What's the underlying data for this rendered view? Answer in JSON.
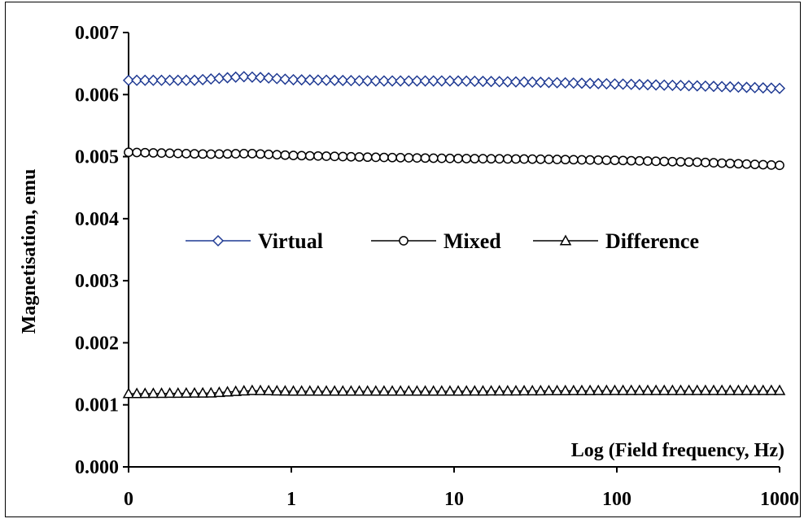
{
  "chart_data": {
    "type": "line",
    "title": "",
    "xlabel": "Log (Field frequency, Hz)",
    "ylabel": "Magnetisation, emu",
    "x_scale": "log-like (decade spacing)",
    "x_tick_labels": [
      "0",
      "1",
      "10",
      "100",
      "1000"
    ],
    "y_tick_labels": [
      "0.000",
      "0.001",
      "0.002",
      "0.003",
      "0.004",
      "0.005",
      "0.006",
      "0.007"
    ],
    "ylim": [
      0,
      0.007
    ],
    "y_ticks": [
      0,
      0.001,
      0.002,
      0.003,
      0.004,
      0.005,
      0.006,
      0.007
    ],
    "grid": false,
    "legend_position": "center",
    "points_per_series": 80,
    "series": [
      {
        "name": "Virtual",
        "marker": "diamond",
        "color": "#1f3a93",
        "marker_fill": "#ffffff",
        "anchors_decade_position": [
          0,
          0.4,
          0.55,
          0.7,
          0.85,
          1,
          1.5,
          2,
          2.5,
          3,
          3.5,
          4
        ],
        "anchors_values": [
          0.00623,
          0.00623,
          0.00626,
          0.00629,
          0.00627,
          0.00624,
          0.00622,
          0.00622,
          0.0062,
          0.00617,
          0.00614,
          0.0061
        ]
      },
      {
        "name": "Mixed",
        "marker": "circle",
        "color": "#000000",
        "marker_fill": "#ffffff",
        "anchors_decade_position": [
          0,
          0.5,
          0.75,
          1,
          1.5,
          2,
          2.5,
          3,
          3.5,
          4
        ],
        "anchors_values": [
          0.00507,
          0.00504,
          0.00505,
          0.00502,
          0.00499,
          0.00497,
          0.00496,
          0.00494,
          0.00491,
          0.00486
        ]
      },
      {
        "name": "Difference",
        "marker": "triangle",
        "color": "#000000",
        "marker_fill": "#ffffff",
        "anchors_decade_position": [
          0,
          0.5,
          0.75,
          1,
          2,
          3,
          4
        ],
        "anchors_values": [
          0.00118,
          0.00119,
          0.00123,
          0.00122,
          0.00122,
          0.00123,
          0.00123
        ]
      }
    ]
  }
}
